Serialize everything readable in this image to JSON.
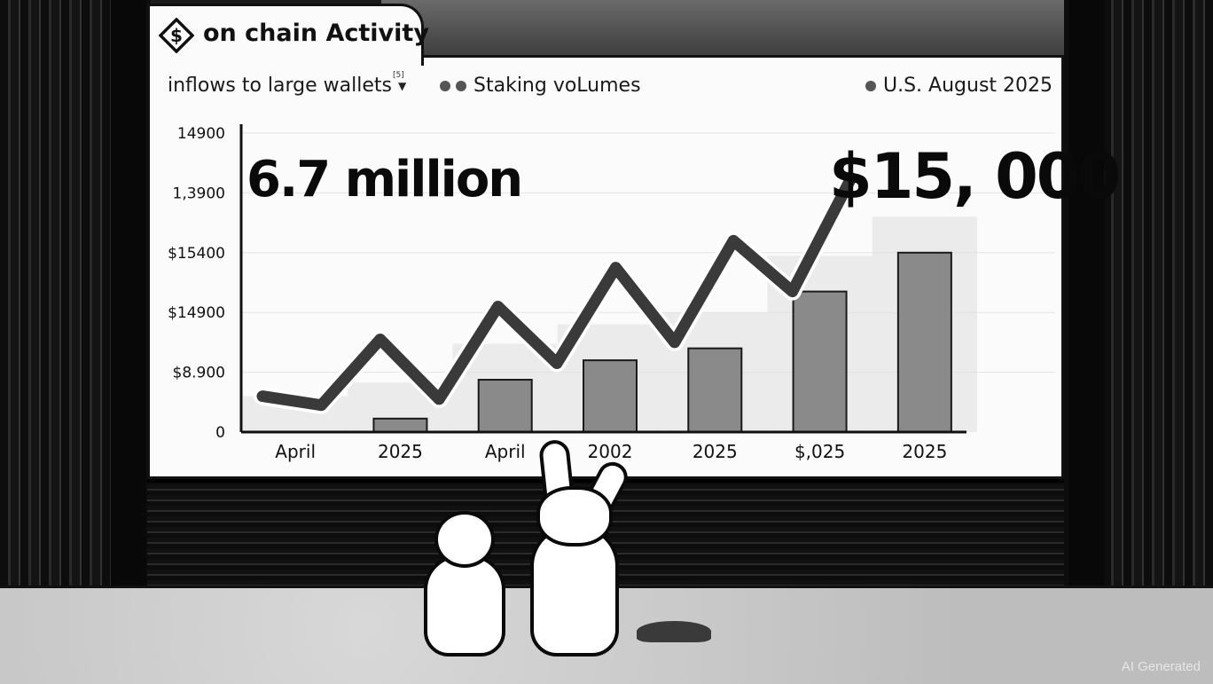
{
  "header": {
    "title": "on chain Activity",
    "logo_icon": "dollar-diamond-icon"
  },
  "legend": {
    "item1": "inflows to large wallets",
    "item1_superscript": "[5]",
    "item2": "Staking voLumes",
    "item3": "U.S. August 2025"
  },
  "callouts": {
    "left": "6.7 million",
    "right": "$15, 000"
  },
  "chart_data": {
    "type": "bar",
    "y_tick_labels": [
      "0",
      "$8.900",
      "$14900",
      "$15400",
      "1,3900",
      "14900"
    ],
    "x_tick_labels": [
      "April",
      "2025",
      "April",
      "2002",
      "2025",
      "$,025",
      "2025"
    ],
    "bars": [
      0,
      0.045,
      0.175,
      0.24,
      0.28,
      0.47,
      0.6
    ],
    "line": [
      0.12,
      0.09,
      0.31,
      0.11,
      0.42,
      0.23,
      0.55,
      0.3,
      0.64,
      0.47,
      0.85
    ],
    "grid": true,
    "colors": {
      "bar": "#8a8a8a",
      "line": "#3a3a3a",
      "shadow": "#dedede"
    }
  },
  "watermark": "AI Generated"
}
